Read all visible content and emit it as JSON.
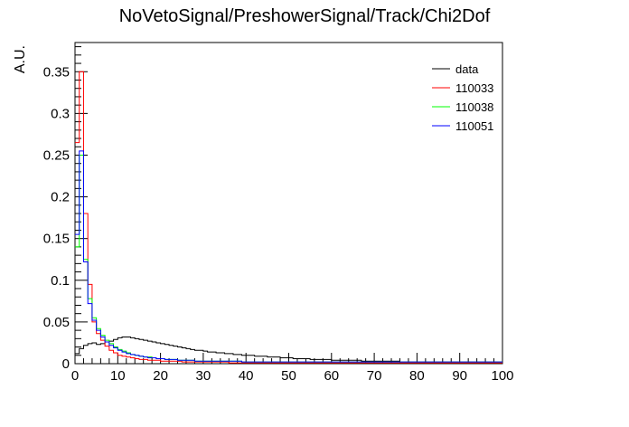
{
  "chart_data": {
    "type": "histogram-step",
    "title": "NoVetoSignal/PreshowerSignal/Track/Chi2Dof",
    "xlabel": "",
    "ylabel": "A.U.",
    "xlim": [
      0,
      100
    ],
    "ylim": [
      0,
      0.385
    ],
    "bin_width": 1,
    "x_ticks": [
      0,
      10,
      20,
      30,
      40,
      50,
      60,
      70,
      80,
      90,
      100
    ],
    "y_ticks": [
      0,
      0.05,
      0.1,
      0.15,
      0.2,
      0.25,
      0.3,
      0.35
    ],
    "y_tick_labels": [
      "0",
      "0.05",
      "0.1",
      "0.15",
      "0.2",
      "0.25",
      "0.3",
      "0.35"
    ],
    "legend_position": "top-right",
    "grid": false,
    "series": [
      {
        "name": "data",
        "color": "#000000",
        "values": [
          0.012,
          0.018,
          0.022,
          0.024,
          0.025,
          0.023,
          0.024,
          0.026,
          0.027,
          0.029,
          0.031,
          0.032,
          0.032,
          0.031,
          0.03,
          0.029,
          0.028,
          0.027,
          0.026,
          0.025,
          0.024,
          0.023,
          0.022,
          0.021,
          0.02,
          0.019,
          0.018,
          0.017,
          0.016,
          0.016,
          0.015,
          0.014,
          0.014,
          0.013,
          0.013,
          0.012,
          0.012,
          0.011,
          0.011,
          0.01,
          0.01,
          0.01,
          0.009,
          0.009,
          0.009,
          0.008,
          0.008,
          0.008,
          0.007,
          0.007,
          0.007,
          0.006,
          0.006,
          0.006,
          0.006,
          0.005,
          0.005,
          0.005,
          0.005,
          0.005,
          0.004,
          0.004,
          0.004,
          0.004,
          0.004,
          0.004,
          0.004,
          0.003,
          0.003,
          0.003,
          0.003,
          0.003,
          0.003,
          0.003,
          0.003,
          0.003,
          0.002,
          0.002,
          0.002,
          0.002,
          0.002,
          0.002,
          0.002,
          0.002,
          0.002,
          0.002,
          0.002,
          0.002,
          0.002,
          0.002,
          0.002,
          0.002,
          0.002,
          0.002,
          0.002,
          0.002,
          0.002,
          0.002,
          0.002,
          0.002
        ]
      },
      {
        "name": "110033",
        "color": "#ff0000",
        "values": [
          0.265,
          0.35,
          0.18,
          0.095,
          0.05,
          0.036,
          0.028,
          0.021,
          0.016,
          0.013,
          0.01,
          0.009,
          0.008,
          0.007,
          0.006,
          0.005,
          0.005,
          0.004,
          0.004,
          0.004,
          0.003,
          0.003,
          0.003,
          0.003,
          0.003,
          0.002,
          0.002,
          0.002,
          0.002,
          0.002,
          0.002,
          0.002,
          0.002,
          0.002,
          0.002,
          0.002,
          0.001,
          0.001,
          0.001,
          0.001,
          0.001,
          0.001,
          0.001,
          0.001,
          0.001,
          0.001,
          0.001,
          0.001,
          0.001,
          0.001,
          0.001,
          0.001,
          0.001,
          0.001,
          0.001,
          0.001,
          0.001,
          0.001,
          0.001,
          0.001,
          0.001,
          0.001,
          0.001,
          0.001,
          0.001,
          0.001,
          0.001,
          0.001,
          0.001,
          0.001,
          0.001,
          0.001,
          0.001,
          0.001,
          0.001,
          0.001,
          0.001,
          0.001,
          0.001,
          0.001,
          0.001,
          0.001,
          0.001,
          0.001,
          0.001,
          0.001,
          0.001,
          0.001,
          0.001,
          0.001,
          0.001,
          0.001,
          0.001,
          0.001,
          0.001,
          0.001,
          0.001,
          0.001,
          0.001,
          0.001
        ]
      },
      {
        "name": "110038",
        "color": "#00ff00",
        "values": [
          0.14,
          0.25,
          0.125,
          0.078,
          0.055,
          0.042,
          0.034,
          0.028,
          0.024,
          0.02,
          0.017,
          0.015,
          0.013,
          0.011,
          0.01,
          0.009,
          0.008,
          0.008,
          0.007,
          0.006,
          0.006,
          0.005,
          0.005,
          0.005,
          0.004,
          0.004,
          0.004,
          0.004,
          0.003,
          0.003,
          0.003,
          0.003,
          0.003,
          0.003,
          0.003,
          0.003,
          0.003,
          0.003,
          0.003,
          0.002,
          0.002,
          0.002,
          0.002,
          0.002,
          0.002,
          0.002,
          0.002,
          0.002,
          0.002,
          0.002,
          0.002,
          0.002,
          0.002,
          0.002,
          0.002,
          0.002,
          0.002,
          0.002,
          0.002,
          0.002,
          0.002,
          0.002,
          0.002,
          0.002,
          0.002,
          0.002,
          0.002,
          0.002,
          0.002,
          0.002,
          0.002,
          0.002,
          0.002,
          0.002,
          0.002,
          0.002,
          0.002,
          0.002,
          0.002,
          0.002,
          0.002,
          0.002,
          0.002,
          0.002,
          0.002,
          0.002,
          0.002,
          0.002,
          0.002,
          0.002,
          0.002,
          0.002,
          0.002,
          0.002,
          0.002,
          0.002,
          0.002,
          0.002,
          0.002,
          0.002
        ]
      },
      {
        "name": "110051",
        "color": "#0000ff",
        "values": [
          0.155,
          0.255,
          0.122,
          0.072,
          0.052,
          0.04,
          0.032,
          0.026,
          0.022,
          0.019,
          0.016,
          0.014,
          0.012,
          0.011,
          0.01,
          0.009,
          0.008,
          0.007,
          0.007,
          0.006,
          0.006,
          0.005,
          0.005,
          0.005,
          0.004,
          0.004,
          0.004,
          0.004,
          0.003,
          0.003,
          0.003,
          0.003,
          0.003,
          0.003,
          0.003,
          0.003,
          0.003,
          0.003,
          0.003,
          0.002,
          0.002,
          0.002,
          0.002,
          0.002,
          0.002,
          0.002,
          0.002,
          0.002,
          0.002,
          0.002,
          0.002,
          0.002,
          0.002,
          0.002,
          0.002,
          0.002,
          0.002,
          0.002,
          0.002,
          0.002,
          0.002,
          0.002,
          0.002,
          0.002,
          0.002,
          0.002,
          0.002,
          0.002,
          0.002,
          0.002,
          0.002,
          0.002,
          0.002,
          0.002,
          0.002,
          0.002,
          0.002,
          0.002,
          0.002,
          0.002,
          0.002,
          0.002,
          0.002,
          0.002,
          0.002,
          0.002,
          0.002,
          0.002,
          0.002,
          0.002,
          0.002,
          0.002,
          0.002,
          0.002,
          0.002,
          0.002,
          0.002,
          0.002,
          0.002,
          0.002
        ]
      }
    ]
  }
}
